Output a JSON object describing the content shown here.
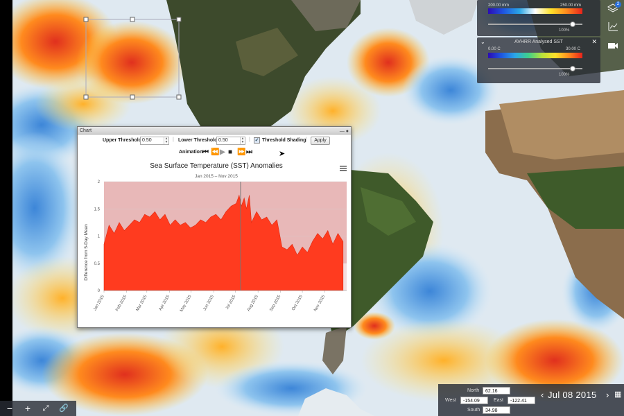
{
  "layers": {
    "precip": {
      "min_label": "200.00 mm",
      "max_label": "250.00 mm",
      "pct": "100%"
    },
    "sst": {
      "title": "AVHRR Analysed SST",
      "min_label": "0.00 C",
      "max_label": "30.00 C",
      "pct": "100%",
      "close_icon": "close-icon"
    },
    "colors": {
      "rainbow": [
        "#2b0bb5",
        "#1e57e0",
        "#2aa6e8",
        "#3fd08a",
        "#b9e33a",
        "#ffe12a",
        "#ff8a1e",
        "#e8221b"
      ]
    }
  },
  "side_tools": {
    "layers_badge": "2"
  },
  "chart_window": {
    "title": "Chart",
    "upper_threshold_label": "Upper Threshold",
    "upper_threshold_value": "0.50",
    "lower_threshold_label": "Lower Threshold",
    "lower_threshold_value": "0.50",
    "threshold_shading_label": "Threshold Shading",
    "threshold_shading_checked": true,
    "apply_label": "Apply",
    "animation_label": "Animation"
  },
  "chart_data": {
    "type": "area",
    "title": "Sea Surface Temperature (SST) Anomalies",
    "subtitle": "Jan 2015 – Nov 2015",
    "ylabel": "Difference from 5-Day Mean",
    "xlabel": "",
    "ylim": [
      0,
      2
    ],
    "yticks": [
      "0",
      "0.5",
      "1",
      "1.5",
      "2"
    ],
    "xtick_labels": [
      "Jan 2015",
      "Feb 2015",
      "Mar 2015",
      "Apr 2015",
      "May 2015",
      "Jun 2015",
      "Jul 2015",
      "Aug 2015",
      "Sep 2015",
      "Oct 2015",
      "Nov 2015"
    ],
    "upper_threshold": 0.5,
    "lower_threshold": 0.5,
    "marker_x": "Jul 2015",
    "series": [
      {
        "color": "#ff3b1f",
        "x": [
          "2015-01-01",
          "2015-01-08",
          "2015-01-15",
          "2015-01-22",
          "2015-01-29",
          "2015-02-05",
          "2015-02-12",
          "2015-02-19",
          "2015-02-26",
          "2015-03-05",
          "2015-03-12",
          "2015-03-19",
          "2015-03-26",
          "2015-04-02",
          "2015-04-09",
          "2015-04-16",
          "2015-04-23",
          "2015-04-30",
          "2015-05-07",
          "2015-05-14",
          "2015-05-21",
          "2015-05-28",
          "2015-06-04",
          "2015-06-11",
          "2015-06-18",
          "2015-06-25",
          "2015-07-02",
          "2015-07-06",
          "2015-07-09",
          "2015-07-13",
          "2015-07-16",
          "2015-07-20",
          "2015-07-23",
          "2015-07-30",
          "2015-08-06",
          "2015-08-13",
          "2015-08-20",
          "2015-08-27",
          "2015-09-03",
          "2015-09-10",
          "2015-09-17",
          "2015-09-24",
          "2015-10-01",
          "2015-10-08",
          "2015-10-15",
          "2015-10-22",
          "2015-10-29",
          "2015-11-05",
          "2015-11-12",
          "2015-11-19",
          "2015-11-26"
        ],
        "values": [
          0.85,
          1.2,
          1.05,
          1.25,
          1.1,
          1.2,
          1.3,
          1.25,
          1.4,
          1.35,
          1.45,
          1.3,
          1.4,
          1.2,
          1.3,
          1.2,
          1.25,
          1.15,
          1.2,
          1.3,
          1.25,
          1.35,
          1.4,
          1.3,
          1.45,
          1.55,
          1.6,
          1.75,
          1.55,
          1.7,
          1.5,
          1.75,
          1.25,
          1.45,
          1.3,
          1.35,
          1.2,
          1.3,
          0.8,
          0.75,
          0.85,
          0.65,
          0.8,
          0.7,
          0.9,
          1.05,
          0.95,
          1.1,
          0.85,
          1.05,
          0.9
        ]
      }
    ]
  },
  "coords": {
    "north_label": "North",
    "north": "62.16",
    "west_label": "West",
    "west": "-154.09",
    "east_label": "East",
    "east": "-122.41",
    "south_label": "South",
    "south": "34.98",
    "date": "Jul 08 2015"
  }
}
